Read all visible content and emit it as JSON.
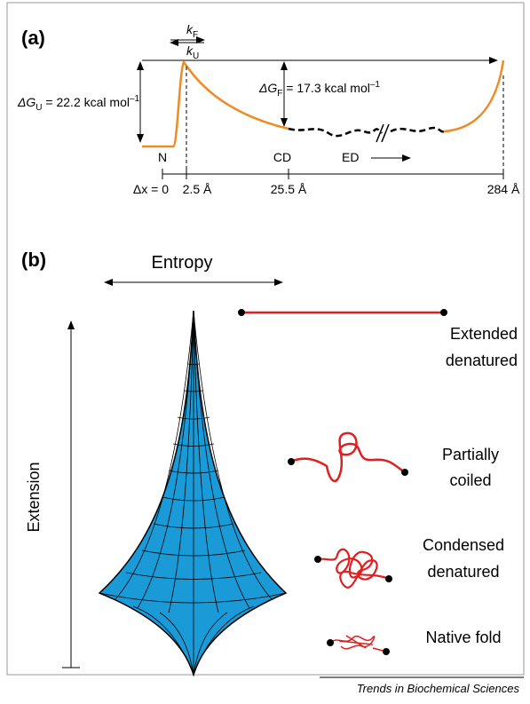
{
  "panel_a": {
    "label": "(a)",
    "k_f": {
      "symbol": "k",
      "sub": "F"
    },
    "k_u": {
      "symbol": "k",
      "sub": "U"
    },
    "dg_u": {
      "symbol": "ΔG",
      "sub": "U",
      "text": " = 22.2 kcal mol",
      "sup": "–1"
    },
    "dg_f": {
      "symbol": "ΔG",
      "sub": "F",
      "text": " = 17.3 kcal mol",
      "sup": "–1"
    },
    "states": [
      "N",
      "CD",
      "ED"
    ],
    "axis_labels": [
      "Δx = 0",
      "2.5 Å",
      "25.5 Å",
      "284 Å"
    ]
  },
  "panel_b": {
    "label": "(b)",
    "x_axis": "Entropy",
    "y_axis": "Extension",
    "states": [
      [
        "Extended",
        "denatured"
      ],
      [
        "Partially",
        "coiled"
      ],
      [
        "Condensed",
        "denatured"
      ],
      [
        "Native fold"
      ]
    ]
  },
  "footer": "Trends in Biochemical Sciences"
}
